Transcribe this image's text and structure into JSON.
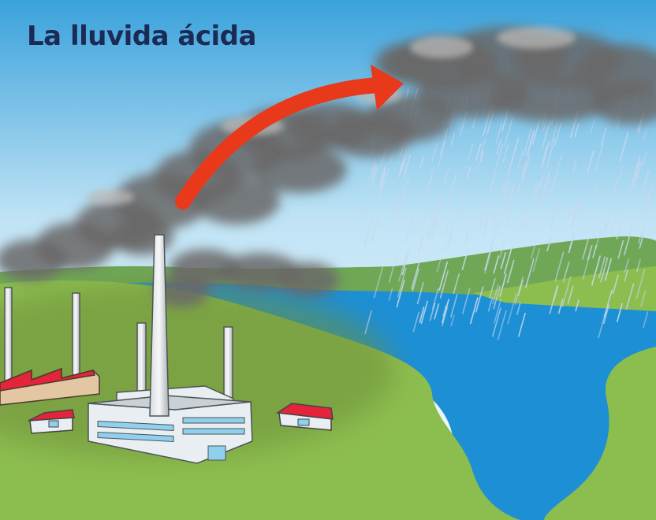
{
  "title": "La lluvida ácida",
  "colors": {
    "title": "#1c2a55",
    "sky_top": "#3aa2db",
    "sky_bottom": "#ffffff",
    "land": "#8cbd4f",
    "land_dark": "#6e8f3a",
    "hill": "#6fa757",
    "water": "#1d8fd4",
    "smoke": "#6a6767",
    "arrow": "#e8391b",
    "roof": "#e3243a",
    "building": "#e9eef2",
    "windows": "#8fd0ee",
    "rain": "#c9d8ee"
  },
  "icons": {
    "arrow": "curved-arrow-icon",
    "rain": "rain-streaks-icon"
  }
}
